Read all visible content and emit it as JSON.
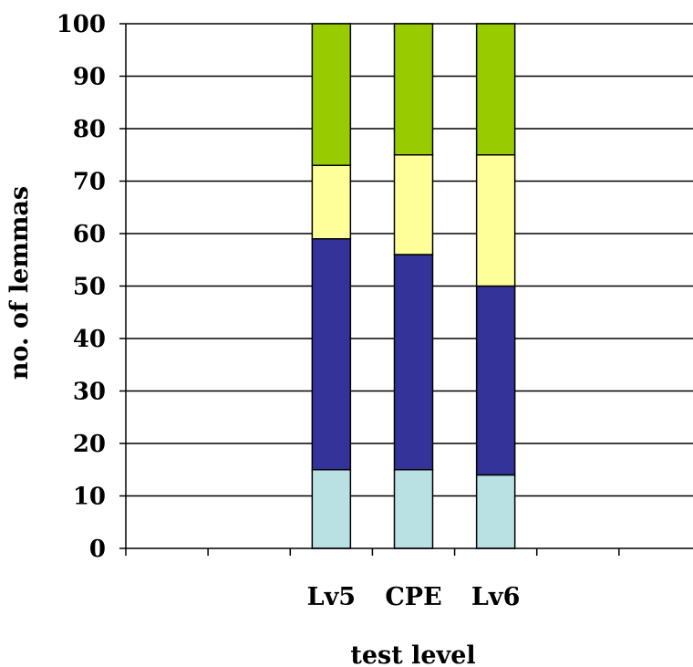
{
  "chart_data": {
    "type": "bar",
    "stacked": true,
    "categories": [
      "",
      "",
      "Lv5",
      "CPE",
      "Lv6",
      "",
      ""
    ],
    "series": [
      {
        "color": "#b9e0e3",
        "values": [
          null,
          null,
          15,
          15,
          14,
          null,
          null
        ]
      },
      {
        "color": "#333399",
        "values": [
          null,
          null,
          44,
          41,
          36,
          null,
          null
        ]
      },
      {
        "color": "#ffff99",
        "values": [
          null,
          null,
          14,
          19,
          25,
          null,
          null
        ]
      },
      {
        "color": "#99cc00",
        "values": [
          null,
          null,
          27,
          25,
          25,
          null,
          null
        ]
      }
    ],
    "xlabel": "test level",
    "ylabel": "no. of lemmas",
    "ylim": [
      0,
      100
    ],
    "yticks": [
      0,
      10,
      20,
      30,
      40,
      50,
      60,
      70,
      80,
      90,
      100
    ],
    "grid": true,
    "legend": "none"
  }
}
